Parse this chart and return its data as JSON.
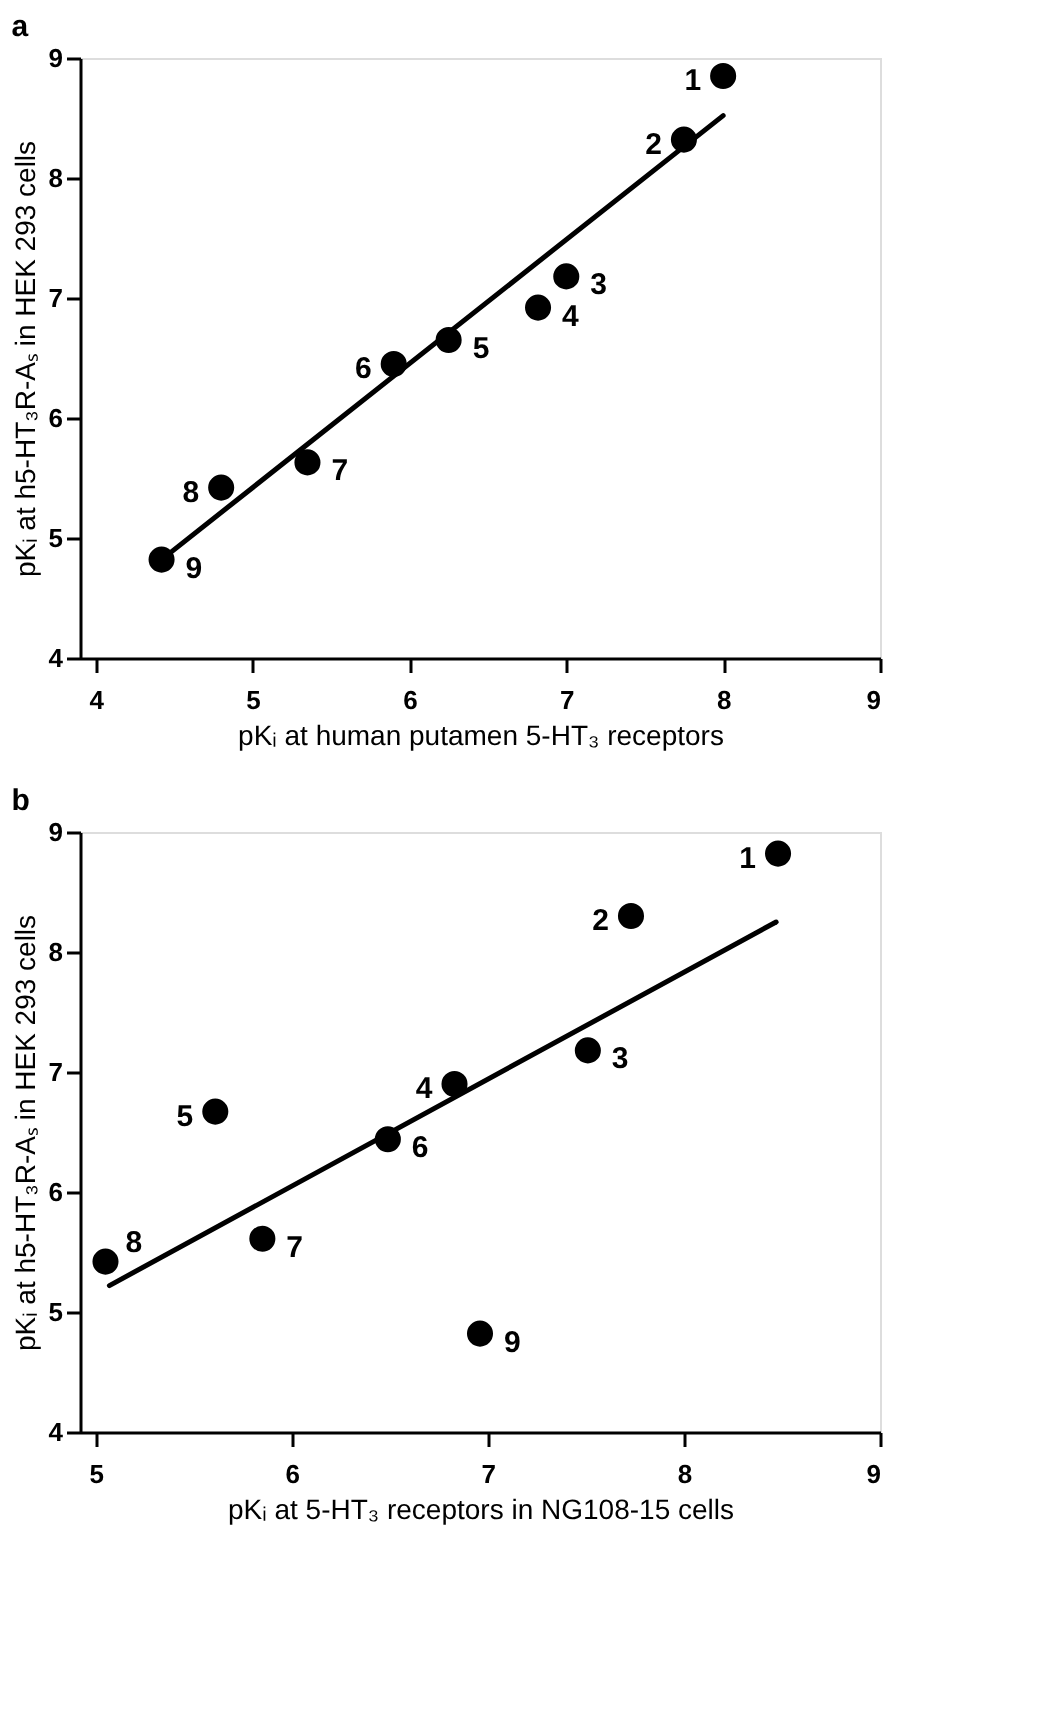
{
  "chart_data": [
    {
      "type": "scatter",
      "title": "a",
      "xlabel": "pKᵢ at human putamen 5-HT₃ receptors",
      "ylabel": "pKᵢ at h5-HT₃R-Aₛ in HEK 293 cells",
      "xlim": [
        3.9,
        9
      ],
      "ylim": [
        4,
        9
      ],
      "xticks": [
        4,
        5,
        6,
        7,
        8,
        9
      ],
      "yticks": [
        4,
        5,
        6,
        7,
        8,
        9
      ],
      "grid": false,
      "series": [
        {
          "color": "#000000",
          "marker": "circle",
          "x": [
            8.0,
            7.75,
            7.0,
            6.82,
            6.25,
            5.9,
            5.35,
            4.8,
            4.42
          ],
          "values": [
            8.85,
            8.32,
            7.18,
            6.92,
            6.65,
            6.45,
            5.63,
            5.42,
            4.82
          ]
        },
        {
          "type": "line",
          "color": "#000000",
          "marker": "none",
          "line_style": "solid",
          "x": [
            4.42,
            8.0
          ],
          "values": [
            4.82,
            8.52
          ]
        }
      ],
      "annotations": [
        {
          "text": "1",
          "x": 8.0,
          "y": 8.85
        },
        {
          "text": "2",
          "x": 7.75,
          "y": 8.32
        },
        {
          "text": "3",
          "x": 7.0,
          "y": 7.18
        },
        {
          "text": "4",
          "x": 6.82,
          "y": 6.92
        },
        {
          "text": "5",
          "x": 6.25,
          "y": 6.65
        },
        {
          "text": "6",
          "x": 5.9,
          "y": 6.45
        },
        {
          "text": "7",
          "x": 5.35,
          "y": 5.63
        },
        {
          "text": "8",
          "x": 4.8,
          "y": 5.42
        },
        {
          "text": "9",
          "x": 4.42,
          "y": 4.82
        }
      ]
    },
    {
      "type": "scatter",
      "title": "b",
      "xlabel": "pKᵢ at 5-HT₃ receptors in NG108-15 cells",
      "ylabel": "pKᵢ at h5-HT₃R-Aₛ in HEK 293 cells",
      "xlim": [
        4.92,
        9
      ],
      "ylim": [
        4,
        9
      ],
      "xticks": [
        5,
        6,
        7,
        8,
        9
      ],
      "yticks": [
        4,
        5,
        6,
        7,
        8,
        9
      ],
      "grid": false,
      "series": [
        {
          "color": "#000000",
          "marker": "circle",
          "x": [
            8.48,
            7.73,
            7.51,
            6.83,
            5.61,
            6.49,
            5.85,
            5.05,
            6.96
          ],
          "values": [
            8.82,
            8.3,
            7.18,
            6.9,
            6.67,
            6.44,
            5.61,
            5.42,
            4.82
          ]
        },
        {
          "type": "line",
          "color": "#000000",
          "marker": "none",
          "line_style": "solid",
          "x": [
            5.07,
            8.47
          ],
          "values": [
            5.22,
            8.25
          ]
        }
      ],
      "annotations": [
        {
          "text": "1",
          "x": 8.48,
          "y": 8.82
        },
        {
          "text": "2",
          "x": 7.73,
          "y": 8.3
        },
        {
          "text": "3",
          "x": 7.51,
          "y": 7.18
        },
        {
          "text": "4",
          "x": 6.83,
          "y": 6.9
        },
        {
          "text": "5",
          "x": 5.61,
          "y": 6.67
        },
        {
          "text": "6",
          "x": 6.49,
          "y": 6.44
        },
        {
          "text": "7",
          "x": 5.85,
          "y": 5.61
        },
        {
          "text": "8",
          "x": 5.05,
          "y": 5.42
        },
        {
          "text": "9",
          "x": 6.96,
          "y": 4.82
        }
      ]
    }
  ]
}
